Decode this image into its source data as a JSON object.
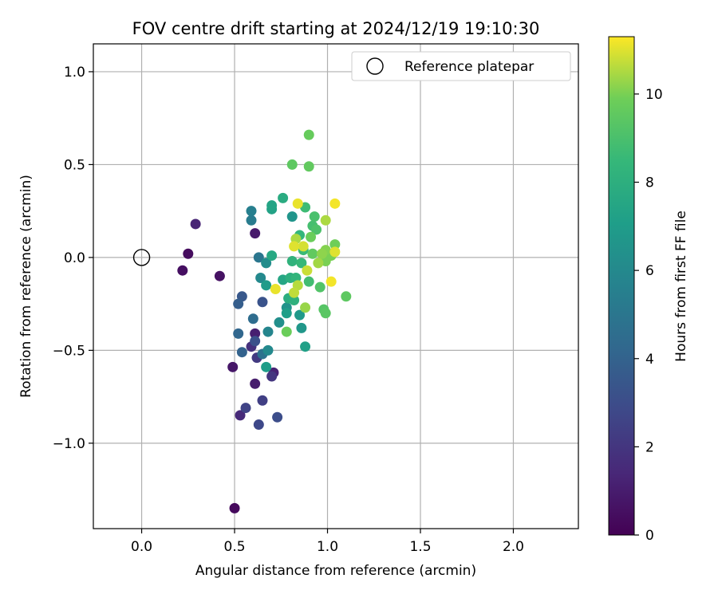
{
  "chart_data": {
    "type": "scatter",
    "title": "FOV centre drift starting at 2024/12/19 19:10:30",
    "xlabel": "Angular distance from reference (arcmin)",
    "ylabel": "Rotation from reference (arcmin)",
    "xlim": [
      -0.26,
      2.35
    ],
    "ylim": [
      -1.46,
      1.15
    ],
    "xticks": [
      0.0,
      0.5,
      1.0,
      1.5,
      2.0
    ],
    "xtick_labels": [
      "0.0",
      "0.5",
      "1.0",
      "1.5",
      "2.0"
    ],
    "yticks": [
      -1.0,
      -0.5,
      0.0,
      0.5,
      1.0
    ],
    "ytick_labels": [
      "−1.0",
      "−0.5",
      "0.0",
      "0.5",
      "1.0"
    ],
    "grid": true,
    "legend": {
      "label": "Reference platepar",
      "placement": "top-right"
    },
    "reference_point": {
      "x": 0.0,
      "y": 0.0
    },
    "colorbar": {
      "label": "Hours from first FF file",
      "range": [
        0,
        11.3
      ],
      "ticks": [
        0,
        2,
        4,
        6,
        8,
        10
      ],
      "tick_labels": [
        "0",
        "2",
        "4",
        "6",
        "8",
        "10"
      ],
      "colormap": "viridis"
    },
    "points": [
      {
        "x": 0.5,
        "y": -1.35,
        "h": 0.3
      },
      {
        "x": 0.25,
        "y": 0.02,
        "h": 0.4
      },
      {
        "x": 0.22,
        "y": -0.07,
        "h": 0.5
      },
      {
        "x": 0.42,
        "y": -0.1,
        "h": 0.6
      },
      {
        "x": 0.49,
        "y": -0.59,
        "h": 0.8
      },
      {
        "x": 0.61,
        "y": 0.13,
        "h": 0.9
      },
      {
        "x": 0.61,
        "y": -0.68,
        "h": 1.0
      },
      {
        "x": 0.61,
        "y": -0.41,
        "h": 1.1
      },
      {
        "x": 0.71,
        "y": -0.62,
        "h": 1.2
      },
      {
        "x": 0.29,
        "y": 0.18,
        "h": 1.3
      },
      {
        "x": 0.53,
        "y": -0.85,
        "h": 1.5
      },
      {
        "x": 0.59,
        "y": -0.48,
        "h": 1.8
      },
      {
        "x": 0.7,
        "y": -0.64,
        "h": 2.0
      },
      {
        "x": 0.62,
        "y": -0.54,
        "h": 2.2
      },
      {
        "x": 0.65,
        "y": -0.77,
        "h": 2.4
      },
      {
        "x": 0.56,
        "y": -0.81,
        "h": 2.6
      },
      {
        "x": 0.63,
        "y": -0.9,
        "h": 2.8
      },
      {
        "x": 0.73,
        "y": -0.86,
        "h": 3.0
      },
      {
        "x": 0.61,
        "y": -0.45,
        "h": 3.2
      },
      {
        "x": 0.65,
        "y": -0.24,
        "h": 3.3
      },
      {
        "x": 0.54,
        "y": -0.21,
        "h": 3.5
      },
      {
        "x": 0.52,
        "y": -0.25,
        "h": 3.8
      },
      {
        "x": 0.54,
        "y": -0.51,
        "h": 4.0
      },
      {
        "x": 0.52,
        "y": -0.41,
        "h": 4.2
      },
      {
        "x": 0.6,
        "y": -0.33,
        "h": 4.5
      },
      {
        "x": 0.65,
        "y": -0.52,
        "h": 4.8
      },
      {
        "x": 0.63,
        "y": 0.0,
        "h": 5.0
      },
      {
        "x": 0.59,
        "y": 0.2,
        "h": 5.3
      },
      {
        "x": 0.59,
        "y": 0.25,
        "h": 5.5
      },
      {
        "x": 0.68,
        "y": -0.4,
        "h": 5.8
      },
      {
        "x": 0.68,
        "y": -0.5,
        "h": 6.0
      },
      {
        "x": 0.64,
        "y": -0.11,
        "h": 6.0
      },
      {
        "x": 0.67,
        "y": -0.03,
        "h": 6.2
      },
      {
        "x": 0.74,
        "y": -0.35,
        "h": 6.3
      },
      {
        "x": 0.78,
        "y": -0.27,
        "h": 6.5
      },
      {
        "x": 0.81,
        "y": 0.22,
        "h": 6.6
      },
      {
        "x": 0.86,
        "y": -0.38,
        "h": 6.7
      },
      {
        "x": 0.85,
        "y": -0.31,
        "h": 6.8
      },
      {
        "x": 0.67,
        "y": -0.15,
        "h": 6.9
      },
      {
        "x": 0.67,
        "y": -0.59,
        "h": 7.0
      },
      {
        "x": 0.78,
        "y": -0.3,
        "h": 7.1
      },
      {
        "x": 0.88,
        "y": -0.48,
        "h": 7.2
      },
      {
        "x": 0.7,
        "y": 0.26,
        "h": 7.3
      },
      {
        "x": 0.7,
        "y": 0.28,
        "h": 7.4
      },
      {
        "x": 0.76,
        "y": -0.12,
        "h": 7.5
      },
      {
        "x": 0.7,
        "y": 0.01,
        "h": 7.6
      },
      {
        "x": 0.76,
        "y": 0.32,
        "h": 7.8
      },
      {
        "x": 0.79,
        "y": -0.22,
        "h": 7.9
      },
      {
        "x": 0.8,
        "y": -0.11,
        "h": 8.0
      },
      {
        "x": 0.82,
        "y": -0.23,
        "h": 8.1
      },
      {
        "x": 0.81,
        "y": -0.02,
        "h": 8.2
      },
      {
        "x": 0.83,
        "y": -0.11,
        "h": 8.3
      },
      {
        "x": 0.85,
        "y": 0.12,
        "h": 8.4
      },
      {
        "x": 0.86,
        "y": -0.03,
        "h": 8.5
      },
      {
        "x": 0.87,
        "y": 0.04,
        "h": 8.6
      },
      {
        "x": 0.88,
        "y": 0.27,
        "h": 8.7
      },
      {
        "x": 0.9,
        "y": -0.13,
        "h": 8.8
      },
      {
        "x": 0.92,
        "y": 0.17,
        "h": 8.9
      },
      {
        "x": 0.93,
        "y": 0.22,
        "h": 9.0
      },
      {
        "x": 0.94,
        "y": 0.15,
        "h": 9.1
      },
      {
        "x": 0.96,
        "y": -0.16,
        "h": 9.2
      },
      {
        "x": 0.98,
        "y": -0.28,
        "h": 9.3
      },
      {
        "x": 0.99,
        "y": -0.3,
        "h": 9.4
      },
      {
        "x": 0.81,
        "y": 0.5,
        "h": 9.5
      },
      {
        "x": 0.9,
        "y": 0.49,
        "h": 9.6
      },
      {
        "x": 0.9,
        "y": 0.66,
        "h": 9.7
      },
      {
        "x": 0.78,
        "y": -0.4,
        "h": 9.8
      },
      {
        "x": 1.1,
        "y": -0.21,
        "h": 9.5
      },
      {
        "x": 1.04,
        "y": 0.07,
        "h": 9.9
      },
      {
        "x": 1.02,
        "y": 0.01,
        "h": 10.0
      },
      {
        "x": 0.91,
        "y": 0.11,
        "h": 9.8
      },
      {
        "x": 0.92,
        "y": 0.02,
        "h": 9.6
      },
      {
        "x": 0.99,
        "y": 0.04,
        "h": 10.1
      },
      {
        "x": 0.88,
        "y": -0.27,
        "h": 10.3
      },
      {
        "x": 0.99,
        "y": -0.02,
        "h": 10.0
      },
      {
        "x": 0.97,
        "y": 0.02,
        "h": 10.2
      },
      {
        "x": 0.95,
        "y": -0.03,
        "h": 10.4
      },
      {
        "x": 0.83,
        "y": 0.1,
        "h": 10.5
      },
      {
        "x": 0.84,
        "y": -0.15,
        "h": 10.6
      },
      {
        "x": 0.82,
        "y": -0.19,
        "h": 10.7
      },
      {
        "x": 0.99,
        "y": 0.2,
        "h": 10.5
      },
      {
        "x": 0.89,
        "y": -0.07,
        "h": 10.8
      },
      {
        "x": 0.87,
        "y": 0.06,
        "h": 10.9
      },
      {
        "x": 0.82,
        "y": 0.06,
        "h": 11.0
      },
      {
        "x": 1.04,
        "y": 0.03,
        "h": 11.0
      },
      {
        "x": 0.72,
        "y": -0.17,
        "h": 11.1
      },
      {
        "x": 0.84,
        "y": 0.29,
        "h": 11.1
      },
      {
        "x": 1.04,
        "y": 0.29,
        "h": 11.2
      },
      {
        "x": 1.02,
        "y": -0.13,
        "h": 11.2
      }
    ]
  }
}
